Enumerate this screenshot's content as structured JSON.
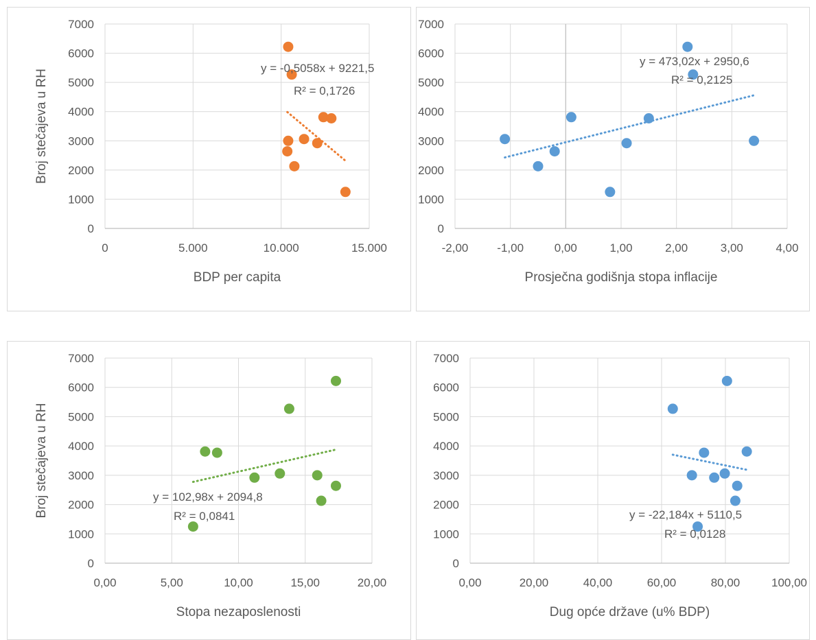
{
  "chart_data": [
    {
      "type": "scatter",
      "xlabel": "BDP per capita",
      "ylabel": "Broj stečajeva u RH",
      "xlim": [
        0,
        15000
      ],
      "ylim": [
        0,
        7000
      ],
      "x_ticks": [
        "0",
        "5.000",
        "10.000",
        "15.000"
      ],
      "y_ticks": [
        "0",
        "1000",
        "2000",
        "3000",
        "4000",
        "5000",
        "6000",
        "7000"
      ],
      "color": "#ed7d31",
      "points": [
        {
          "x": 10400,
          "y": 6220
        },
        {
          "x": 10600,
          "y": 5270
        },
        {
          "x": 12400,
          "y": 3810
        },
        {
          "x": 12850,
          "y": 3770
        },
        {
          "x": 11300,
          "y": 3060
        },
        {
          "x": 10400,
          "y": 3000
        },
        {
          "x": 12050,
          "y": 2920
        },
        {
          "x": 10350,
          "y": 2640
        },
        {
          "x": 10750,
          "y": 2130
        },
        {
          "x": 13650,
          "y": 1250
        }
      ],
      "trendline": {
        "x_start": 10350,
        "x_end": 13650,
        "slope": -0.5058,
        "intercept": 9221.5
      },
      "equation": "y = -0,5058x + 9221,5",
      "r_squared": "R² = 0,1726"
    },
    {
      "type": "scatter",
      "xlabel": "Prosječna godišnja stopa inflacije",
      "ylabel": "",
      "xlim": [
        -2,
        4
      ],
      "ylim": [
        0,
        7000
      ],
      "x_ticks": [
        "-2,00",
        "-1,00",
        "0,00",
        "1,00",
        "2,00",
        "3,00",
        "4,00"
      ],
      "y_ticks": [
        "0",
        "1000",
        "2000",
        "3000",
        "4000",
        "5000",
        "6000",
        "7000"
      ],
      "color": "#5b9bd5",
      "points": [
        {
          "x": 2.2,
          "y": 6220
        },
        {
          "x": 2.3,
          "y": 5270
        },
        {
          "x": 0.1,
          "y": 3810
        },
        {
          "x": 1.5,
          "y": 3770
        },
        {
          "x": -1.1,
          "y": 3060
        },
        {
          "x": 3.4,
          "y": 3000
        },
        {
          "x": 1.1,
          "y": 2920
        },
        {
          "x": -0.2,
          "y": 2640
        },
        {
          "x": -0.5,
          "y": 2130
        },
        {
          "x": 0.8,
          "y": 1250
        }
      ],
      "trendline": {
        "x_start": -1.1,
        "x_end": 3.4,
        "slope": 473.02,
        "intercept": 2950.6
      },
      "equation": "y = 473,02x + 2950,6",
      "r_squared": "R² = 0,2125"
    },
    {
      "type": "scatter",
      "xlabel": "Stopa nezaposlenosti",
      "ylabel": "Broj stečajeva u RH",
      "xlim": [
        0,
        20
      ],
      "ylim": [
        0,
        7000
      ],
      "x_ticks": [
        "0,00",
        "5,00",
        "10,00",
        "15,00",
        "20,00"
      ],
      "y_ticks": [
        "0",
        "1000",
        "2000",
        "3000",
        "4000",
        "5000",
        "6000",
        "7000"
      ],
      "color": "#70ad47",
      "points": [
        {
          "x": 17.3,
          "y": 6220
        },
        {
          "x": 13.8,
          "y": 5270
        },
        {
          "x": 7.5,
          "y": 3810
        },
        {
          "x": 8.4,
          "y": 3770
        },
        {
          "x": 13.1,
          "y": 3060
        },
        {
          "x": 15.9,
          "y": 3000
        },
        {
          "x": 11.2,
          "y": 2920
        },
        {
          "x": 17.3,
          "y": 2640
        },
        {
          "x": 16.2,
          "y": 2130
        },
        {
          "x": 6.6,
          "y": 1250
        }
      ],
      "trendline": {
        "x_start": 6.6,
        "x_end": 17.3,
        "slope": 102.98,
        "intercept": 2094.8
      },
      "equation": "y = 102,98x + 2094,8",
      "r_squared": "R² = 0,0841"
    },
    {
      "type": "scatter",
      "xlabel": "Dug opće države (u% BDP)",
      "ylabel": "",
      "xlim": [
        0,
        100
      ],
      "ylim": [
        0,
        7000
      ],
      "x_ticks": [
        "0,00",
        "20,00",
        "40,00",
        "60,00",
        "80,00",
        "100,00"
      ],
      "y_ticks": [
        "0",
        "1000",
        "2000",
        "3000",
        "4000",
        "5000",
        "6000",
        "7000"
      ],
      "color": "#5b9bd5",
      "points": [
        {
          "x": 80.5,
          "y": 6220
        },
        {
          "x": 63.5,
          "y": 5270
        },
        {
          "x": 86.7,
          "y": 3810
        },
        {
          "x": 73.3,
          "y": 3770
        },
        {
          "x": 79.8,
          "y": 3060
        },
        {
          "x": 69.5,
          "y": 3000
        },
        {
          "x": 76.5,
          "y": 2920
        },
        {
          "x": 83.7,
          "y": 2640
        },
        {
          "x": 83.1,
          "y": 2130
        },
        {
          "x": 71.3,
          "y": 1250
        }
      ],
      "trendline": {
        "x_start": 63.5,
        "x_end": 86.7,
        "slope": -22.184,
        "intercept": 5110.5
      },
      "equation": "y = -22,184x + 5110,5",
      "r_squared": "R² = 0,0128"
    }
  ]
}
